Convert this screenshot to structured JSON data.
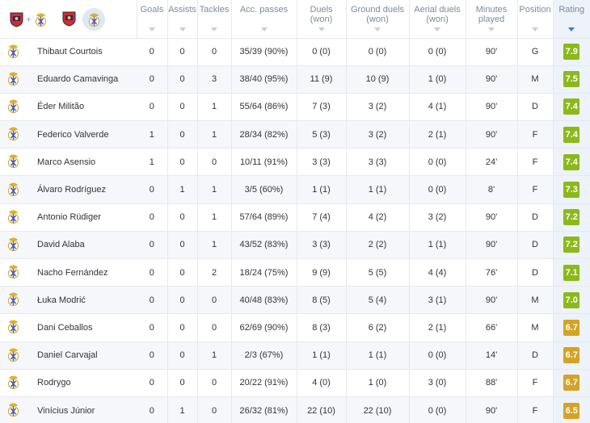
{
  "columns": {
    "goals": "Goals",
    "assists": "Assists",
    "tackles": "Tackles",
    "acc_passes": "Acc. passes",
    "duels": [
      "Duels",
      "(won)"
    ],
    "ground_duels": [
      "Ground duels",
      "(won)"
    ],
    "aerial_duels": [
      "Aerial duels",
      "(won)"
    ],
    "minutes": [
      "Minutes",
      "played"
    ],
    "position": "Position",
    "rating": "Rating"
  },
  "header_icons": [
    "real-madrid-crest",
    "osasuna-crest",
    "real-madrid-crest",
    "osasuna-crest",
    "real-madrid-crest"
  ],
  "colors": {
    "rating_green": "#8cb81c",
    "rating_gold": "#d4a326",
    "sort_active": "#3a7bd5"
  },
  "players": [
    {
      "name": "Thibaut Courtois",
      "goals": "0",
      "assists": "0",
      "tackles": "0",
      "acc": "35/39 (90%)",
      "duels": "0 (0)",
      "ground": "0 (0)",
      "aerial": "0 (0)",
      "minutes": "90'",
      "position": "G",
      "rating": "7.9",
      "tier": "green"
    },
    {
      "name": "Eduardo Camavinga",
      "goals": "0",
      "assists": "0",
      "tackles": "3",
      "acc": "38/40 (95%)",
      "duels": "11 (9)",
      "ground": "10 (9)",
      "aerial": "1 (0)",
      "minutes": "90'",
      "position": "M",
      "rating": "7.5",
      "tier": "green"
    },
    {
      "name": "Éder Militão",
      "goals": "0",
      "assists": "0",
      "tackles": "1",
      "acc": "55/64 (86%)",
      "duels": "7 (3)",
      "ground": "3 (2)",
      "aerial": "4 (1)",
      "minutes": "90'",
      "position": "D",
      "rating": "7.4",
      "tier": "green"
    },
    {
      "name": "Federico Valverde",
      "goals": "1",
      "assists": "0",
      "tackles": "1",
      "acc": "28/34 (82%)",
      "duels": "5 (3)",
      "ground": "3 (2)",
      "aerial": "2 (1)",
      "minutes": "90'",
      "position": "F",
      "rating": "7.4",
      "tier": "green"
    },
    {
      "name": "Marco Asensio",
      "goals": "1",
      "assists": "0",
      "tackles": "0",
      "acc": "10/11 (91%)",
      "duels": "3 (3)",
      "ground": "3 (3)",
      "aerial": "0 (0)",
      "minutes": "24'",
      "position": "F",
      "rating": "7.4",
      "tier": "green"
    },
    {
      "name": "Álvaro Rodríguez",
      "goals": "0",
      "assists": "1",
      "tackles": "1",
      "acc": "3/5 (60%)",
      "duels": "1 (1)",
      "ground": "1 (1)",
      "aerial": "0 (0)",
      "minutes": "8'",
      "position": "F",
      "rating": "7.3",
      "tier": "green"
    },
    {
      "name": "Antonio Rüdiger",
      "goals": "0",
      "assists": "0",
      "tackles": "1",
      "acc": "57/64 (89%)",
      "duels": "7 (4)",
      "ground": "4 (2)",
      "aerial": "3 (2)",
      "minutes": "90'",
      "position": "D",
      "rating": "7.2",
      "tier": "green"
    },
    {
      "name": "David Alaba",
      "goals": "0",
      "assists": "0",
      "tackles": "1",
      "acc": "43/52 (83%)",
      "duels": "3 (3)",
      "ground": "2 (2)",
      "aerial": "1 (1)",
      "minutes": "90'",
      "position": "D",
      "rating": "7.2",
      "tier": "green"
    },
    {
      "name": "Nacho Fernández",
      "goals": "0",
      "assists": "0",
      "tackles": "2",
      "acc": "18/24 (75%)",
      "duels": "9 (9)",
      "ground": "5 (5)",
      "aerial": "4 (4)",
      "minutes": "76'",
      "position": "D",
      "rating": "7.1",
      "tier": "green"
    },
    {
      "name": "Łuka Modrić",
      "goals": "0",
      "assists": "0",
      "tackles": "0",
      "acc": "40/48 (83%)",
      "duels": "8 (5)",
      "ground": "5 (4)",
      "aerial": "3 (1)",
      "minutes": "90'",
      "position": "M",
      "rating": "7.0",
      "tier": "green"
    },
    {
      "name": "Dani Ceballos",
      "goals": "0",
      "assists": "0",
      "tackles": "0",
      "acc": "62/69 (90%)",
      "duels": "8 (3)",
      "ground": "6 (2)",
      "aerial": "2 (1)",
      "minutes": "66'",
      "position": "M",
      "rating": "6.7",
      "tier": "gold"
    },
    {
      "name": "Daniel Carvajal",
      "goals": "0",
      "assists": "0",
      "tackles": "1",
      "acc": "2/3 (67%)",
      "duels": "1 (1)",
      "ground": "1 (1)",
      "aerial": "0 (0)",
      "minutes": "14'",
      "position": "D",
      "rating": "6.7",
      "tier": "gold"
    },
    {
      "name": "Rodrygo",
      "goals": "0",
      "assists": "0",
      "tackles": "0",
      "acc": "20/22 (91%)",
      "duels": "4 (0)",
      "ground": "1 (0)",
      "aerial": "3 (0)",
      "minutes": "88'",
      "position": "F",
      "rating": "6.7",
      "tier": "gold"
    },
    {
      "name": "Vinícius Júnior",
      "goals": "0",
      "assists": "1",
      "tackles": "0",
      "acc": "26/32 (81%)",
      "duels": "22 (10)",
      "ground": "22 (10)",
      "aerial": "0 (0)",
      "minutes": "90'",
      "position": "F",
      "rating": "6.5",
      "tier": "gold"
    }
  ]
}
